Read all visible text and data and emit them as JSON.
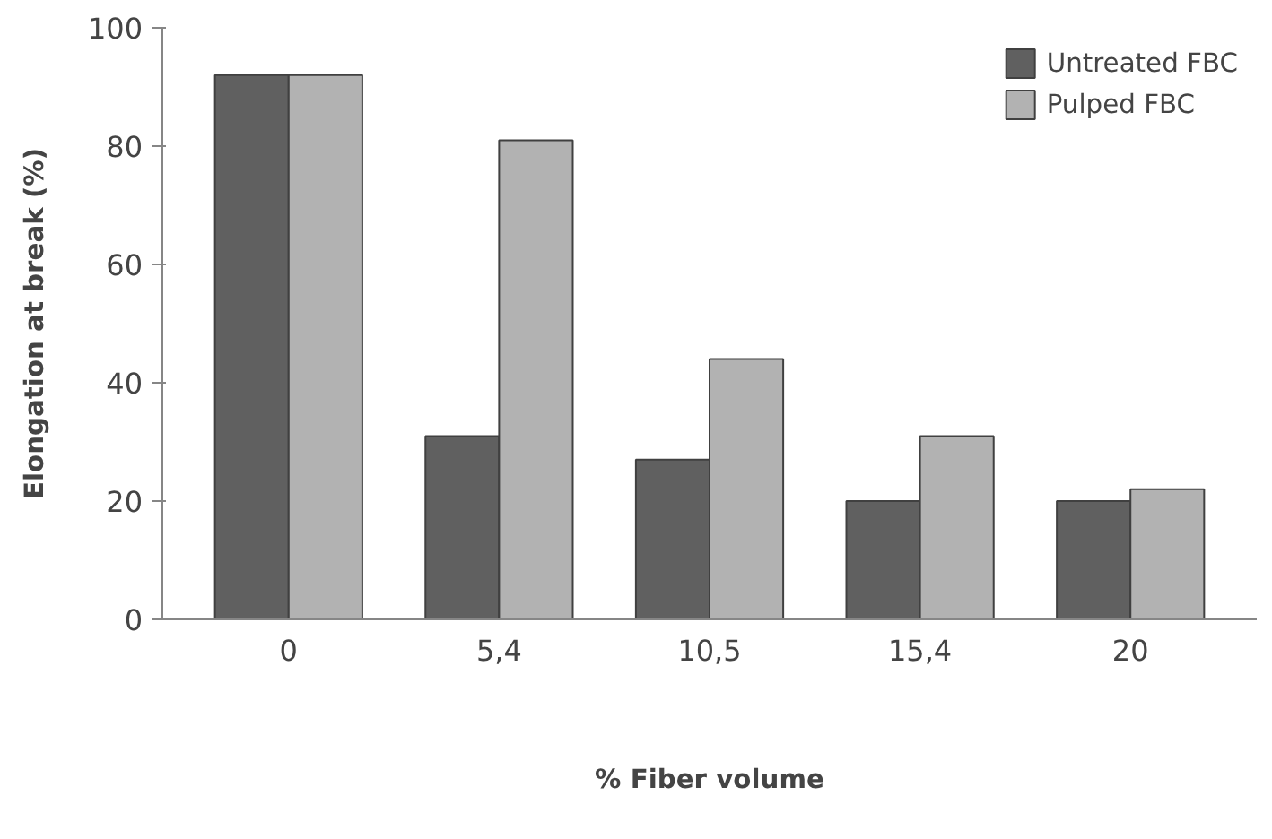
{
  "chart_data": {
    "type": "bar",
    "xlabel": "% Fiber volume",
    "ylabel": "Elongation at break (%)",
    "categories": [
      "0",
      "5,4",
      "10,5",
      "15,4",
      "20"
    ],
    "series": [
      {
        "name": "Untreated FBC",
        "color": "#606060",
        "values": [
          92,
          31,
          27,
          20,
          20
        ]
      },
      {
        "name": "Pulped FBC",
        "color": "#b2b2b2",
        "values": [
          92,
          81,
          44,
          31,
          22
        ]
      }
    ],
    "ylim": [
      0,
      100
    ],
    "yticks": [
      0,
      20,
      40,
      60,
      80,
      100
    ],
    "grid": false,
    "legend": "top right"
  }
}
